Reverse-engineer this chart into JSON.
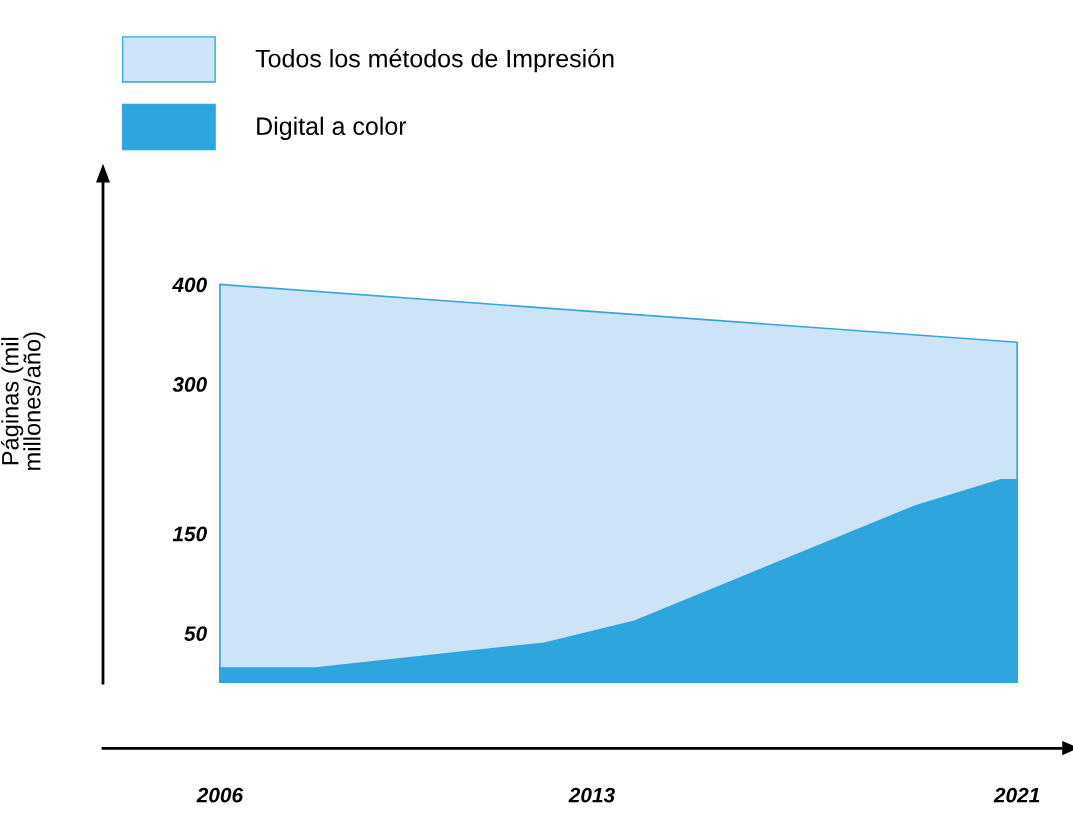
{
  "chart_data": {
    "type": "area",
    "ylabel": "Páginas (mil\nmillones/año)",
    "legend": "top left",
    "xlim": [
      2003.8,
      2021.9
    ],
    "ylim": [
      0,
      505
    ],
    "xticks": [
      2006,
      2013,
      2021
    ],
    "yticks": [
      50,
      150,
      300,
      400
    ],
    "series": [
      {
        "name": "Todos los métodos de Impresión",
        "color": "#cce4f5",
        "x": [
          2006,
          2021
        ],
        "values": [
          400,
          342
        ]
      },
      {
        "name": "Digital a color",
        "color": "#2ea5dc",
        "x": [
          2006,
          2007.8,
          2012.1,
          2013.8,
          2019.1,
          2020.7,
          2021
        ],
        "values": [
          15,
          15,
          40,
          62,
          178,
          204,
          204
        ]
      }
    ]
  }
}
